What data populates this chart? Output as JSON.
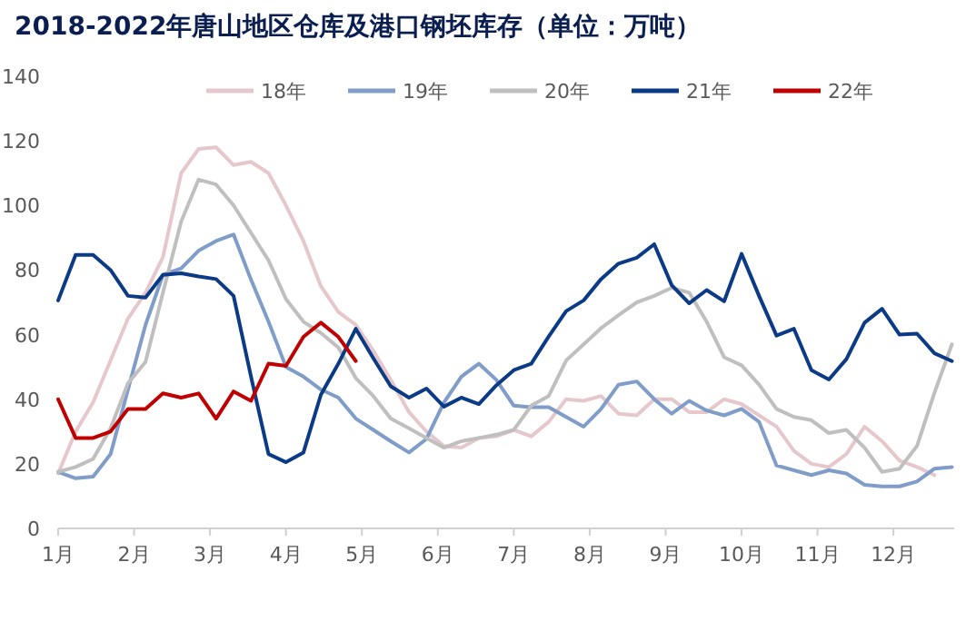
{
  "chart_data": {
    "type": "line",
    "title": "2018-2022年唐山地区仓库及港口钢坯库存（单位：万吨）",
    "x": [
      1,
      1.23,
      1.46,
      1.69,
      1.92,
      2.15,
      2.38,
      2.62,
      2.85,
      3.08,
      3.31,
      3.54,
      3.77,
      4,
      4.23,
      4.46,
      4.69,
      4.92,
      5.15,
      5.38,
      5.62,
      5.85,
      6.08,
      6.31,
      6.54,
      6.77,
      7,
      7.23,
      7.46,
      7.69,
      7.92,
      8.15,
      8.38,
      8.62,
      8.85,
      9.08,
      9.31,
      9.54,
      9.77,
      10,
      10.23,
      10.46,
      10.69,
      10.92,
      11.15,
      11.38,
      11.62,
      11.85,
      12.08,
      12.31,
      12.54,
      12.77
    ],
    "xlim": [
      1,
      12.8
    ],
    "xticks": [
      {
        "value": 1,
        "label": "1月"
      },
      {
        "value": 2,
        "label": "2月"
      },
      {
        "value": 3,
        "label": "3月"
      },
      {
        "value": 4,
        "label": "4月"
      },
      {
        "value": 5,
        "label": "5月"
      },
      {
        "value": 6,
        "label": "6月"
      },
      {
        "value": 7,
        "label": "7月"
      },
      {
        "value": 8,
        "label": "8月"
      },
      {
        "value": 9,
        "label": "9月"
      },
      {
        "value": 10,
        "label": "10月"
      },
      {
        "value": 11,
        "label": "11月"
      },
      {
        "value": 12,
        "label": "12月"
      }
    ],
    "ylim": [
      0,
      140
    ],
    "yticks": [
      0,
      20,
      40,
      60,
      80,
      100,
      120,
      140
    ],
    "grid": false,
    "legend": "top",
    "marker": "none",
    "line_style": "solid",
    "series": [
      {
        "name": "18年",
        "color": "#e6c8cc",
        "values": [
          17,
          30,
          39,
          52,
          65,
          73,
          84,
          110,
          117.5,
          118,
          112.5,
          113.5,
          110,
          100,
          89,
          75,
          67,
          63,
          55,
          46,
          36,
          30,
          25.5,
          25,
          28,
          28.5,
          30.5,
          28.5,
          33,
          40,
          39.5,
          41,
          35.5,
          35,
          40,
          40,
          36,
          36,
          40,
          38.5,
          35,
          31.5,
          24,
          20,
          19,
          23,
          31.5,
          27,
          21,
          19,
          16.5,
          null
        ]
      },
      {
        "name": "19年",
        "color": "#7f9dc8",
        "values": [
          17.5,
          15.5,
          16,
          23,
          43,
          63,
          78.5,
          80.5,
          86,
          89,
          91,
          77,
          64,
          50,
          47,
          43,
          40.5,
          34,
          30.5,
          27,
          23.5,
          27.7,
          39,
          47,
          51,
          46,
          38,
          37.5,
          37.5,
          34.5,
          31.5,
          37,
          44.5,
          45.5,
          40,
          35.5,
          39.5,
          36.5,
          35,
          37,
          33,
          19.5,
          18,
          16.5,
          18,
          17,
          13.5,
          13,
          13,
          14.5,
          18.5,
          19
        ]
      },
      {
        "name": "20年",
        "color": "#bfbfbf",
        "values": [
          17.5,
          19,
          21.5,
          31,
          45,
          51.5,
          73,
          95,
          108,
          106.5,
          100,
          91.5,
          83,
          71,
          64,
          60.5,
          56,
          46.5,
          41,
          34,
          31,
          28,
          25,
          27,
          28,
          29,
          30.5,
          38,
          41,
          52,
          57,
          62,
          66,
          70,
          72,
          74.5,
          73,
          64,
          53,
          50.5,
          44.5,
          37,
          34.5,
          33.5,
          29.5,
          30.5,
          25,
          17.5,
          18.5,
          25.5,
          42,
          57
        ]
      },
      {
        "name": "21年",
        "color": "#0b3a87",
        "values": [
          70.6,
          84.7,
          84.7,
          80,
          72,
          71.5,
          78.5,
          79,
          78,
          77.2,
          72,
          47,
          23,
          20.5,
          23.5,
          41.4,
          51,
          61.8,
          52.7,
          44,
          40.5,
          43.3,
          37.7,
          40.5,
          38.5,
          44.3,
          49,
          51,
          59.4,
          67.3,
          70.6,
          77.2,
          82,
          83.8,
          88,
          75.3,
          69.7,
          73.8,
          70.3,
          85,
          72,
          59.7,
          61.8,
          49,
          46.1,
          52.4,
          63.7,
          68,
          60,
          60.3,
          54.2,
          51.8
        ]
      },
      {
        "name": "22年",
        "color": "#c00000",
        "values": [
          40,
          28,
          28,
          30,
          37,
          37,
          41.8,
          40.5,
          41.8,
          34,
          42.4,
          39.5,
          51,
          50.3,
          59.3,
          63.7,
          59.3,
          51.8,
          null,
          null,
          null,
          null,
          null,
          null,
          null,
          null,
          null,
          null,
          null,
          null,
          null,
          null,
          null,
          null,
          null,
          null,
          null,
          null,
          null,
          null,
          null,
          null,
          null,
          null,
          null,
          null,
          null,
          null,
          null,
          null,
          null,
          null
        ]
      }
    ]
  }
}
